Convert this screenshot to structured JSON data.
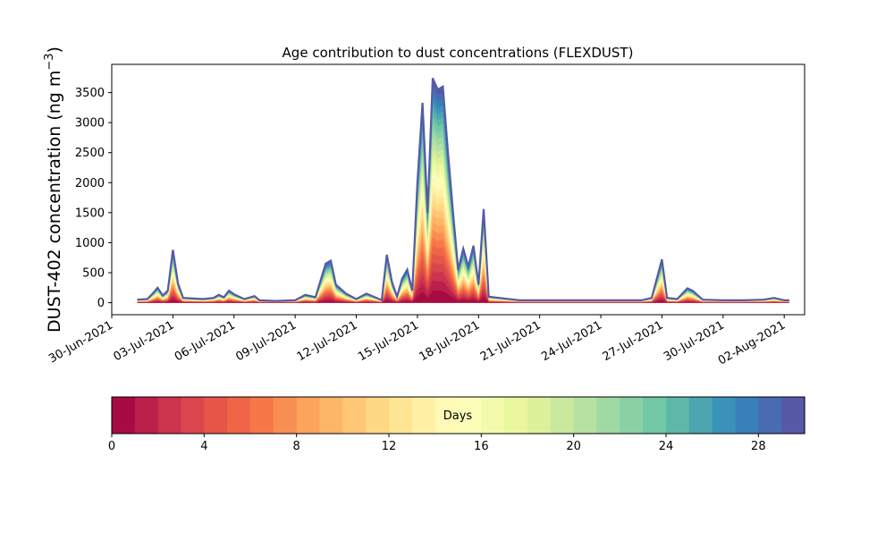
{
  "chart_data": {
    "type": "area",
    "stacked": true,
    "title": "Age contribution to dust concentrations (FLEXDUST)",
    "ylabel": "DUST-402 concentration (ng m",
    "ylabel_unit_exponent": "−3",
    "ylabel_suffix": ")",
    "ylim": [
      -200,
      3970
    ],
    "yticks": [
      0,
      500,
      1000,
      1500,
      2000,
      2500,
      3000,
      3500
    ],
    "xlim": [
      "2021-06-30T00:00",
      "2021-08-03T00:00"
    ],
    "xticks": [
      "2021-06-30",
      "2021-07-03",
      "2021-07-06",
      "2021-07-09",
      "2021-07-12",
      "2021-07-15",
      "2021-07-18",
      "2021-07-21",
      "2021-07-24",
      "2021-07-27",
      "2021-07-30",
      "2021-08-02"
    ],
    "xtick_labels": [
      "30-Jun-2021",
      "03-Jul-2021",
      "06-Jul-2021",
      "09-Jul-2021",
      "12-Jul-2021",
      "15-Jul-2021",
      "18-Jul-2021",
      "21-Jul-2021",
      "24-Jul-2021",
      "27-Jul-2021",
      "30-Jul-2021",
      "02-Aug-2021"
    ],
    "grid": false,
    "age_bins_days": 30,
    "total_series": [
      [
        "2021-07-01T06:00",
        50
      ],
      [
        "2021-07-01T18:00",
        60
      ],
      [
        "2021-07-02T00:00",
        150
      ],
      [
        "2021-07-02T06:00",
        250
      ],
      [
        "2021-07-02T12:00",
        120
      ],
      [
        "2021-07-02T18:00",
        200
      ],
      [
        "2021-07-03T00:00",
        880
      ],
      [
        "2021-07-03T06:00",
        320
      ],
      [
        "2021-07-03T12:00",
        80
      ],
      [
        "2021-07-04T00:00",
        70
      ],
      [
        "2021-07-04T12:00",
        60
      ],
      [
        "2021-07-05T00:00",
        80
      ],
      [
        "2021-07-05T06:00",
        130
      ],
      [
        "2021-07-05T12:00",
        90
      ],
      [
        "2021-07-05T18:00",
        200
      ],
      [
        "2021-07-06T00:00",
        140
      ],
      [
        "2021-07-06T12:00",
        60
      ],
      [
        "2021-07-07T00:00",
        110
      ],
      [
        "2021-07-07T06:00",
        40
      ],
      [
        "2021-07-08T00:00",
        30
      ],
      [
        "2021-07-09T00:00",
        40
      ],
      [
        "2021-07-09T12:00",
        130
      ],
      [
        "2021-07-10T00:00",
        90
      ],
      [
        "2021-07-10T12:00",
        650
      ],
      [
        "2021-07-10T18:00",
        700
      ],
      [
        "2021-07-11T00:00",
        300
      ],
      [
        "2021-07-11T12:00",
        150
      ],
      [
        "2021-07-12T00:00",
        60
      ],
      [
        "2021-07-12T12:00",
        150
      ],
      [
        "2021-07-13T00:00",
        80
      ],
      [
        "2021-07-13T06:00",
        40
      ],
      [
        "2021-07-13T12:00",
        800
      ],
      [
        "2021-07-13T18:00",
        350
      ],
      [
        "2021-07-14T00:00",
        100
      ],
      [
        "2021-07-14T06:00",
        400
      ],
      [
        "2021-07-14T12:00",
        550
      ],
      [
        "2021-07-14T18:00",
        200
      ],
      [
        "2021-07-15T00:00",
        2000
      ],
      [
        "2021-07-15T06:00",
        3330
      ],
      [
        "2021-07-15T12:00",
        1500
      ],
      [
        "2021-07-15T18:00",
        3740
      ],
      [
        "2021-07-16T00:00",
        3550
      ],
      [
        "2021-07-16T06:00",
        3600
      ],
      [
        "2021-07-16T12:00",
        2500
      ],
      [
        "2021-07-16T18:00",
        1500
      ],
      [
        "2021-07-17T00:00",
        550
      ],
      [
        "2021-07-17T06:00",
        900
      ],
      [
        "2021-07-17T12:00",
        600
      ],
      [
        "2021-07-17T18:00",
        950
      ],
      [
        "2021-07-18T00:00",
        300
      ],
      [
        "2021-07-18T06:00",
        1560
      ],
      [
        "2021-07-18T12:00",
        100
      ],
      [
        "2021-07-19T00:00",
        80
      ],
      [
        "2021-07-20T00:00",
        40
      ],
      [
        "2021-07-21T00:00",
        40
      ],
      [
        "2021-07-22T00:00",
        40
      ],
      [
        "2021-07-23T00:00",
        40
      ],
      [
        "2021-07-24T00:00",
        40
      ],
      [
        "2021-07-25T00:00",
        40
      ],
      [
        "2021-07-26T00:00",
        40
      ],
      [
        "2021-07-26T12:00",
        80
      ],
      [
        "2021-07-27T00:00",
        720
      ],
      [
        "2021-07-27T06:00",
        80
      ],
      [
        "2021-07-27T18:00",
        60
      ],
      [
        "2021-07-28T06:00",
        240
      ],
      [
        "2021-07-28T12:00",
        200
      ],
      [
        "2021-07-29T00:00",
        50
      ],
      [
        "2021-07-30T00:00",
        40
      ],
      [
        "2021-07-31T00:00",
        40
      ],
      [
        "2021-08-01T00:00",
        50
      ],
      [
        "2021-08-01T12:00",
        80
      ],
      [
        "2021-08-02T00:00",
        40
      ],
      [
        "2021-08-02T06:00",
        40
      ]
    ],
    "colorbar": {
      "label": "Days",
      "range": [
        0,
        30
      ],
      "ticks": [
        0,
        4,
        8,
        12,
        16,
        20,
        24,
        28
      ],
      "colormap": "Spectral",
      "n_bins": 30
    }
  }
}
